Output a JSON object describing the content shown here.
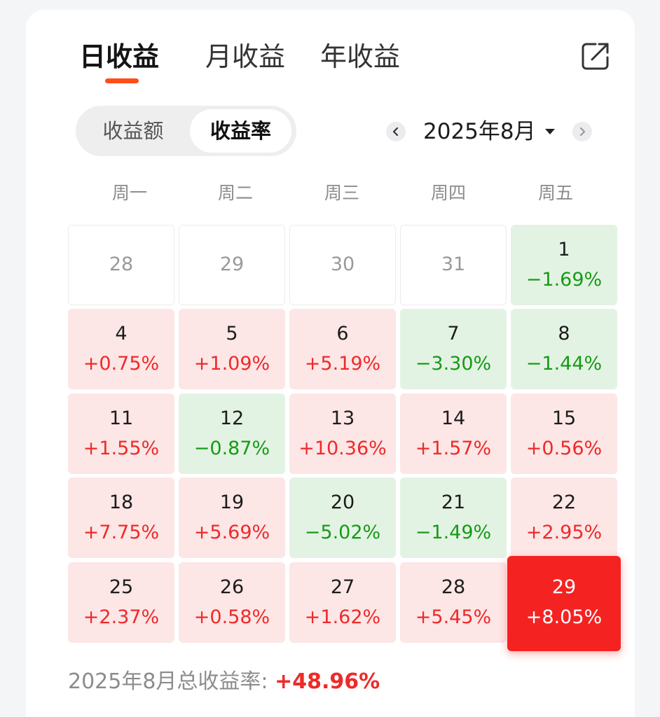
{
  "tabs": [
    {
      "label": "日收益",
      "active": true
    },
    {
      "label": "月收益",
      "active": false
    },
    {
      "label": "年收益",
      "active": false
    }
  ],
  "segmented": {
    "left": "收益额",
    "right": "收益率",
    "selected": "收益率"
  },
  "month": {
    "label": "2025年8月"
  },
  "weekdays": [
    "周一",
    "周二",
    "周三",
    "周四",
    "周五"
  ],
  "days": [
    {
      "day": "28",
      "pct": "",
      "type": "empty"
    },
    {
      "day": "29",
      "pct": "",
      "type": "empty"
    },
    {
      "day": "30",
      "pct": "",
      "type": "empty"
    },
    {
      "day": "31",
      "pct": "",
      "type": "empty"
    },
    {
      "day": "1",
      "pct": "−1.69%",
      "type": "down"
    },
    {
      "day": "4",
      "pct": "+0.75%",
      "type": "up"
    },
    {
      "day": "5",
      "pct": "+1.09%",
      "type": "up"
    },
    {
      "day": "6",
      "pct": "+5.19%",
      "type": "up"
    },
    {
      "day": "7",
      "pct": "−3.30%",
      "type": "down"
    },
    {
      "day": "8",
      "pct": "−1.44%",
      "type": "down"
    },
    {
      "day": "11",
      "pct": "+1.55%",
      "type": "up"
    },
    {
      "day": "12",
      "pct": "−0.87%",
      "type": "down"
    },
    {
      "day": "13",
      "pct": "+10.36%",
      "type": "up"
    },
    {
      "day": "14",
      "pct": "+1.57%",
      "type": "up"
    },
    {
      "day": "15",
      "pct": "+0.56%",
      "type": "up"
    },
    {
      "day": "18",
      "pct": "+7.75%",
      "type": "up"
    },
    {
      "day": "19",
      "pct": "+5.69%",
      "type": "up"
    },
    {
      "day": "20",
      "pct": "−5.02%",
      "type": "down"
    },
    {
      "day": "21",
      "pct": "−1.49%",
      "type": "down"
    },
    {
      "day": "22",
      "pct": "+2.95%",
      "type": "up"
    },
    {
      "day": "25",
      "pct": "+2.37%",
      "type": "up"
    },
    {
      "day": "26",
      "pct": "+0.58%",
      "type": "up"
    },
    {
      "day": "27",
      "pct": "+1.62%",
      "type": "up"
    },
    {
      "day": "28",
      "pct": "+5.45%",
      "type": "up"
    },
    {
      "day": "29",
      "pct": "+8.05%",
      "type": "selected"
    }
  ],
  "summary": {
    "label": "2025年8月总收益率:",
    "value": "+48.96%"
  },
  "colors": {
    "up": "#ee2a2a",
    "down": "#179a17",
    "accent": "#ff4d1a",
    "selected": "#f52222"
  },
  "icons": {
    "share": "share-icon",
    "prev": "chevron-left-icon",
    "next": "chevron-right-icon",
    "caret": "caret-down-icon"
  }
}
